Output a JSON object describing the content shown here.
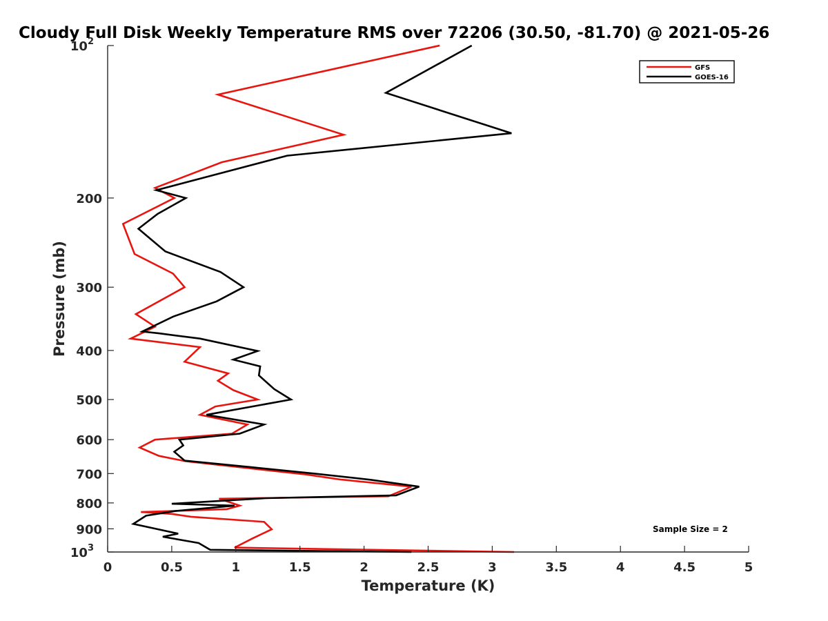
{
  "chart_data": {
    "type": "line",
    "title": "Cloudy Full Disk Weekly Temperature RMS over 72206 (30.50, -81.70) @ 2021-05-26",
    "xlabel": "Temperature (K)",
    "ylabel": "Pressure (mb)",
    "xlim": [
      0,
      5
    ],
    "ylim": [
      100,
      1000
    ],
    "y_scale": "log",
    "y_reversed": true,
    "x_ticks": [
      "0",
      "0.5",
      "1",
      "1.5",
      "2",
      "2.5",
      "3",
      "3.5",
      "4",
      "4.5",
      "5"
    ],
    "x_tick_values": [
      0,
      0.5,
      1,
      1.5,
      2,
      2.5,
      3,
      3.5,
      4,
      4.5,
      5
    ],
    "y_ticks": [
      {
        "value": 100,
        "base": "10",
        "exp": "2"
      },
      {
        "value": 200,
        "label": "200"
      },
      {
        "value": 300,
        "label": "300"
      },
      {
        "value": 400,
        "label": "400"
      },
      {
        "value": 500,
        "label": "500"
      },
      {
        "value": 600,
        "label": "600"
      },
      {
        "value": 700,
        "label": "700"
      },
      {
        "value": 800,
        "label": "800"
      },
      {
        "value": 900,
        "label": "900"
      },
      {
        "value": 1000,
        "base": "10",
        "exp": "3"
      }
    ],
    "grid": false,
    "legend_position": "top-right",
    "annotation": "Sample Size = 2",
    "series": [
      {
        "name": "GFS",
        "color": "#e8150f",
        "points": [
          [
            2.59,
            100
          ],
          [
            0.86,
            125
          ],
          [
            1.84,
            150
          ],
          [
            0.89,
            170
          ],
          [
            0.37,
            191
          ],
          [
            0.52,
            200
          ],
          [
            0.12,
            225
          ],
          [
            0.21,
            258
          ],
          [
            0.51,
            282
          ],
          [
            0.6,
            300
          ],
          [
            0.22,
            339
          ],
          [
            0.37,
            359
          ],
          [
            0.18,
            379
          ],
          [
            0.72,
            394
          ],
          [
            0.6,
            421
          ],
          [
            0.94,
            444
          ],
          [
            0.86,
            459
          ],
          [
            0.98,
            479
          ],
          [
            1.17,
            500
          ],
          [
            0.84,
            516
          ],
          [
            0.72,
            536
          ],
          [
            1.09,
            560
          ],
          [
            0.97,
            584
          ],
          [
            0.37,
            600
          ],
          [
            0.25,
            622
          ],
          [
            0.4,
            646
          ],
          [
            0.61,
            662
          ],
          [
            1.03,
            680
          ],
          [
            1.55,
            703
          ],
          [
            1.81,
            719
          ],
          [
            2.37,
            743
          ],
          [
            2.19,
            776
          ],
          [
            0.87,
            785
          ],
          [
            1.03,
            810
          ],
          [
            0.93,
            823
          ],
          [
            0.26,
            834
          ],
          [
            0.5,
            841
          ],
          [
            0.65,
            852
          ],
          [
            1.22,
            872
          ],
          [
            1.28,
            902
          ],
          [
            1.13,
            940
          ],
          [
            0.99,
            980
          ],
          [
            3.17,
            1000
          ]
        ]
      },
      {
        "name": "GOES-16",
        "color": "#000000",
        "points": [
          [
            2.84,
            100
          ],
          [
            2.17,
            124
          ],
          [
            3.15,
            149
          ],
          [
            1.4,
            165
          ],
          [
            0.38,
            193
          ],
          [
            0.61,
            200
          ],
          [
            0.39,
            215
          ],
          [
            0.24,
            230
          ],
          [
            0.45,
            255
          ],
          [
            0.88,
            280
          ],
          [
            1.06,
            300
          ],
          [
            0.85,
            320
          ],
          [
            0.51,
            343
          ],
          [
            0.27,
            367
          ],
          [
            0.4,
            370
          ],
          [
            0.72,
            379
          ],
          [
            1.17,
            401
          ],
          [
            0.98,
            417
          ],
          [
            1.19,
            430
          ],
          [
            1.18,
            448
          ],
          [
            1.3,
            477
          ],
          [
            1.43,
            500
          ],
          [
            0.77,
            536
          ],
          [
            1.22,
            560
          ],
          [
            1.03,
            584
          ],
          [
            0.56,
            600
          ],
          [
            0.59,
            616
          ],
          [
            0.52,
            634
          ],
          [
            0.6,
            660
          ],
          [
            1.12,
            680
          ],
          [
            1.61,
            700
          ],
          [
            2.05,
            720
          ],
          [
            2.43,
            743
          ],
          [
            2.25,
            773
          ],
          [
            1.23,
            783
          ],
          [
            0.5,
            803
          ],
          [
            0.99,
            810
          ],
          [
            0.53,
            830
          ],
          [
            0.3,
            848
          ],
          [
            0.2,
            880
          ],
          [
            0.55,
            920
          ],
          [
            0.43,
            933
          ],
          [
            0.71,
            960
          ],
          [
            0.8,
            990
          ],
          [
            2.37,
            1000
          ]
        ]
      }
    ]
  }
}
